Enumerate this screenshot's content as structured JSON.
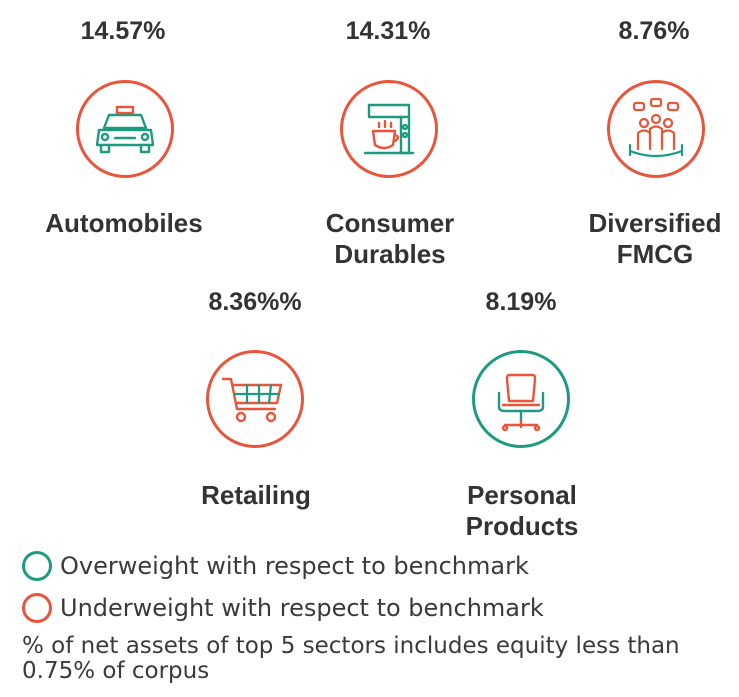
{
  "colors": {
    "underweight": "#e8553a",
    "overweight": "#1f9a82"
  },
  "sectors": [
    {
      "pct": "14.57%",
      "label_lines": [
        "Automobiles"
      ],
      "icon": "car-icon",
      "status": "underweight"
    },
    {
      "pct": "14.31%",
      "label_lines": [
        "Consumer",
        "Durables"
      ],
      "icon": "coffee-machine-icon",
      "status": "underweight"
    },
    {
      "pct": "8.76%",
      "label_lines": [
        "Diversified",
        "FMCG"
      ],
      "icon": "people-group-icon",
      "status": "underweight"
    },
    {
      "pct": "8.36%%",
      "label_lines": [
        "Retailing"
      ],
      "icon": "shopping-cart-icon",
      "status": "underweight"
    },
    {
      "pct": "8.19%",
      "label_lines": [
        "Personal",
        "Products"
      ],
      "icon": "office-chair-icon",
      "status": "overweight"
    }
  ],
  "legend": {
    "overweight": "Overweight with respect to benchmark",
    "underweight": "Underweight with respect to benchmark"
  },
  "note": "% of net assets of top 5 sectors includes equity less than 0.75% of corpus"
}
